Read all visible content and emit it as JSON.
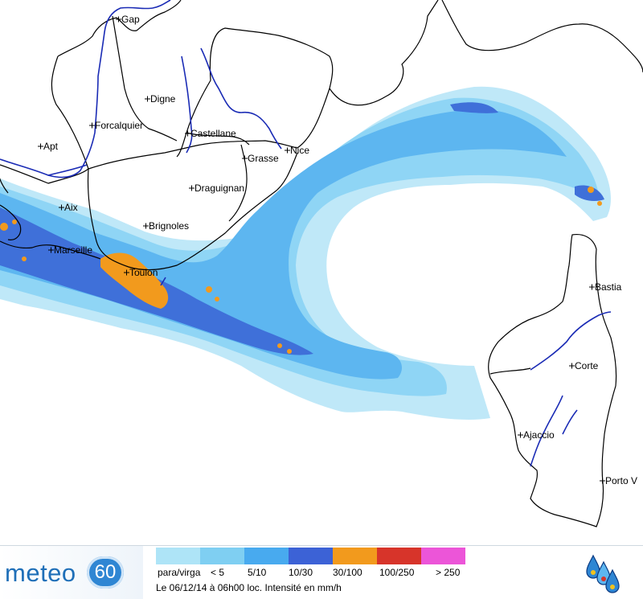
{
  "map": {
    "cities": [
      {
        "name": "Gap"
      },
      {
        "name": "Digne"
      },
      {
        "name": "Forcalquier"
      },
      {
        "name": "Castellane"
      },
      {
        "name": "Apt"
      },
      {
        "name": "Grasse"
      },
      {
        "name": "Nice"
      },
      {
        "name": "Draguignan"
      },
      {
        "name": "Aix"
      },
      {
        "name": "Brignoles"
      },
      {
        "name": "Marseille"
      },
      {
        "name": "Toulon"
      },
      {
        "name": "Bastia"
      },
      {
        "name": "Corte"
      },
      {
        "name": "Ajaccio"
      },
      {
        "name": "Porto V"
      }
    ]
  },
  "footer": {
    "brand_text": "meteo",
    "brand_number": "60",
    "legend": [
      {
        "label": "para/virga",
        "color": "#aee4f7"
      },
      {
        "label": "< 5",
        "color": "#7fcff2"
      },
      {
        "label": "5/10",
        "color": "#48aaef"
      },
      {
        "label": "10/30",
        "color": "#3c62d6"
      },
      {
        "label": "30/100",
        "color": "#f29a1d"
      },
      {
        "label": "100/250",
        "color": "#d7342a"
      },
      {
        "label": "> 250",
        "color": "#ec55d8"
      }
    ],
    "timestamp": "Le 06/12/14 à 06h00 loc. Intensité en mm/h",
    "logo_icon": "rain-drops-logo-icon"
  }
}
